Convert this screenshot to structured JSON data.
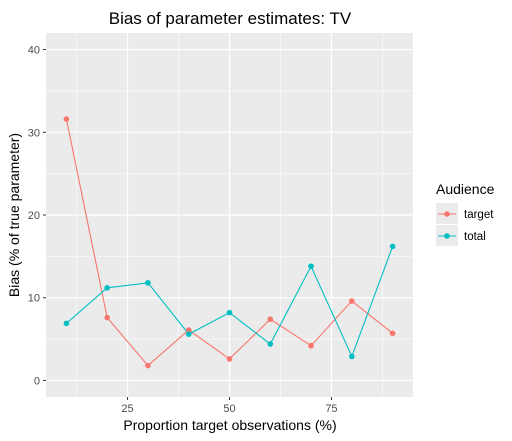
{
  "chart_data": {
    "type": "line",
    "title": "Bias of parameter estimates: TV",
    "xlabel": "Proportion target observations (%)",
    "ylabel": "Bias (% of true parameter)",
    "xlim": [
      5,
      95
    ],
    "ylim": [
      -2,
      42
    ],
    "x_ticks": [
      25,
      50,
      75
    ],
    "y_ticks": [
      0,
      10,
      20,
      30,
      40
    ],
    "x_tick_labels": [
      "25",
      "50",
      "75"
    ],
    "y_tick_labels": [
      "0",
      "10",
      "20",
      "30",
      "40"
    ],
    "grid": true,
    "legend": {
      "title": "Audience",
      "position": "right"
    },
    "series": [
      {
        "name": "target",
        "color": "#F8766D",
        "x": [
          10,
          20,
          30,
          40,
          50,
          60,
          70,
          80,
          90
        ],
        "values": [
          31.6,
          7.6,
          1.8,
          6.1,
          2.6,
          7.4,
          4.2,
          9.6,
          5.7
        ]
      },
      {
        "name": "total",
        "color": "#00BFC4",
        "x": [
          10,
          20,
          30,
          40,
          50,
          60,
          70,
          80,
          90
        ],
        "values": [
          6.9,
          11.2,
          11.8,
          5.6,
          8.2,
          4.4,
          13.8,
          2.9,
          16.2
        ]
      }
    ]
  }
}
